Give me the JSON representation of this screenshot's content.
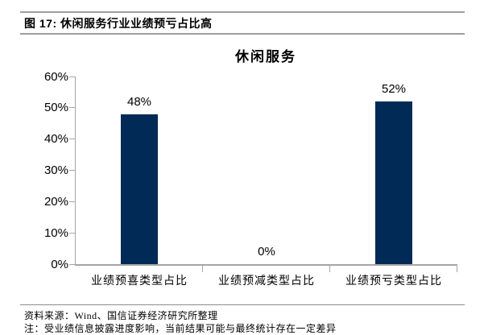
{
  "figure_header": {
    "label": "图 17: 休闲服务行业业绩预亏占比高"
  },
  "chart_data": {
    "type": "bar",
    "title": "休闲服务",
    "categories": [
      "业绩预喜类型占比",
      "业绩预减类型占比",
      "业绩预亏类型占比"
    ],
    "values": [
      48,
      0,
      52
    ],
    "value_labels": [
      "48%",
      "0%",
      "52%"
    ],
    "xlabel": "",
    "ylabel": "",
    "ylim": [
      0,
      60
    ],
    "ytick_step": 10,
    "ytick_labels": [
      "0%",
      "10%",
      "20%",
      "30%",
      "40%",
      "50%",
      "60%"
    ],
    "grid": false,
    "legend": null,
    "bar_color": "#012a57",
    "axis_color": "#a6a6a6"
  },
  "footer": {
    "source": "资料来源：Wind、国信证券经济研究所整理",
    "note_partial": "注：受业绩信息披露进度影响，当前结果可能与最终统计存在一定差异"
  }
}
